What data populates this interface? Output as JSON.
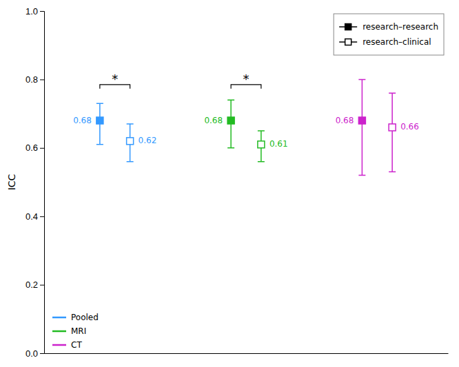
{
  "chart_data": {
    "type": "dot",
    "ylabel": "ICC",
    "categories": [
      "Pooled",
      "MRI",
      "CT"
    ],
    "colors": [
      "#3399FF",
      "#22BB22",
      "#CC22CC"
    ],
    "series": [
      {
        "name": "research–research",
        "marker": "square",
        "values": [
          0.68,
          0.68,
          0.68
        ],
        "ci_low": [
          0.61,
          0.6,
          0.52
        ],
        "ci_high": [
          0.73,
          0.74,
          0.8
        ]
      },
      {
        "name": "research–clinical",
        "marker": "open-square",
        "values": [
          0.62,
          0.61,
          0.66
        ],
        "ci_low": [
          0.56,
          0.56,
          0.53
        ],
        "ci_high": [
          0.67,
          0.65,
          0.76
        ]
      }
    ],
    "annotations": [
      {
        "text": "*",
        "category": "Pooled",
        "y": 0.785
      },
      {
        "text": "*",
        "category": "MRI",
        "y": 0.785
      }
    ],
    "ylim": [
      0.0,
      1.0
    ],
    "yticks": [
      {
        "value": 0.0,
        "label": "0.0"
      },
      {
        "value": 0.2,
        "label": "0.2"
      },
      {
        "value": 0.4,
        "label": "0.4"
      },
      {
        "value": 0.6,
        "label": "0.6"
      },
      {
        "value": 0.8,
        "label": "0.8"
      },
      {
        "value": 1.0,
        "label": "1.0"
      }
    ],
    "data_labels": true,
    "tick_labels": "y",
    "grid": false,
    "legend": "upper-right"
  }
}
